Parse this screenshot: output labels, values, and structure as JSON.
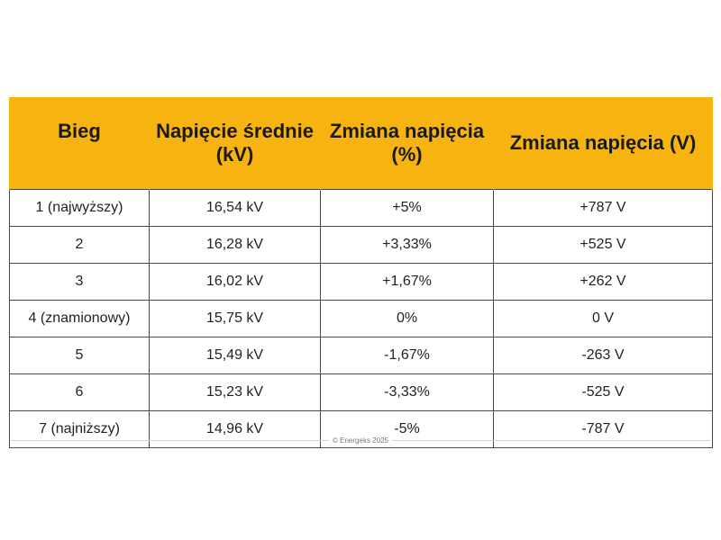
{
  "table": {
    "headers": [
      "Bieg",
      "Napięcie średnie (kV)",
      "Zmiana napięcia (%)",
      "Zmiana napięcia (V)"
    ],
    "rows": [
      [
        "1 (najwyższy)",
        "16,54 kV",
        "+5%",
        "+787 V"
      ],
      [
        "2",
        "16,28 kV",
        "+3,33%",
        "+525 V"
      ],
      [
        "3",
        "16,02 kV",
        "+1,67%",
        "+262 V"
      ],
      [
        "4 (znamionowy)",
        "15,75 kV",
        "0%",
        "0 V"
      ],
      [
        "5",
        "15,49 kV",
        "-1,67%",
        "-263 V"
      ],
      [
        "6",
        "15,23 kV",
        "-3,33%",
        "-525 V"
      ],
      [
        "7 (najniższy)",
        "14,96 kV",
        "-5%",
        "-787 V"
      ]
    ]
  },
  "footer": {
    "text": "© Energeks 2025"
  },
  "colors": {
    "header_bg": "#f7b410",
    "footer_line": "#f6d27a"
  }
}
